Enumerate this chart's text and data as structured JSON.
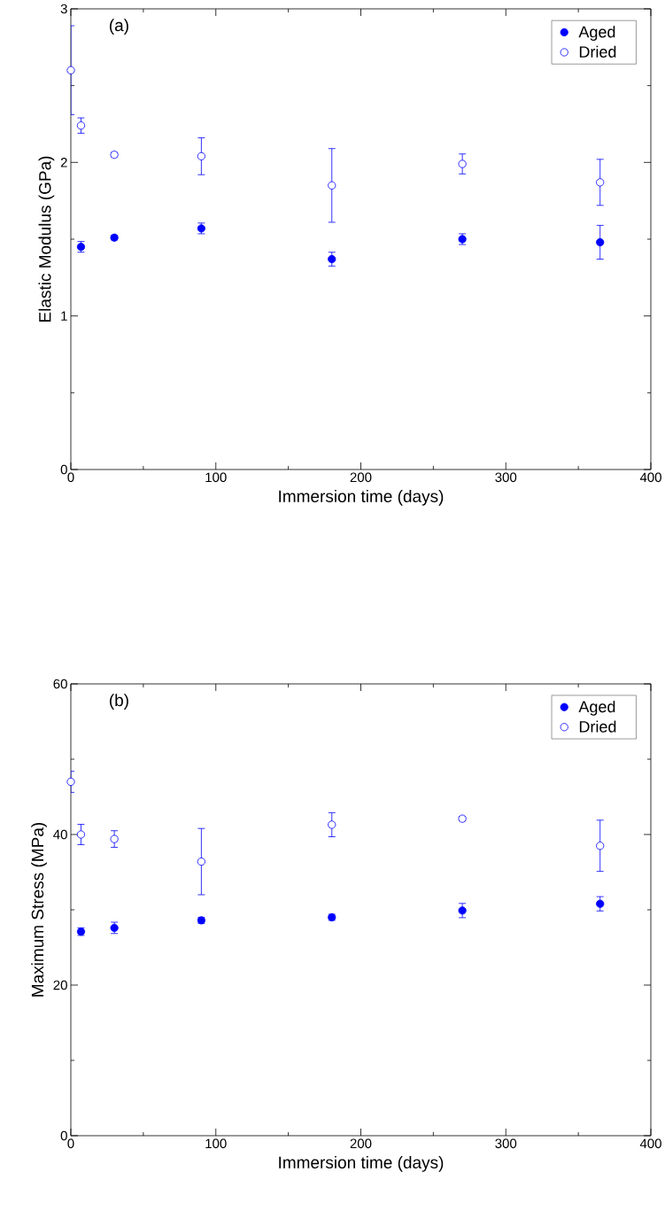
{
  "chart_data": [
    {
      "type": "scatter",
      "xlabel": "Immersion time (days)",
      "ylabel": "Elastic Modulus (GPa)",
      "annotations": [
        "(a)"
      ],
      "legend": "top right",
      "marker": "circle",
      "xlim": [
        0,
        400
      ],
      "xticks": [
        0,
        {
          "value": 50,
          "label": null
        },
        100,
        {
          "value": 150,
          "label": null
        },
        200,
        {
          "value": 250,
          "label": null
        },
        300,
        {
          "value": 350,
          "label": null
        },
        400
      ],
      "ylim": [
        0,
        3
      ],
      "yticks": [
        0,
        {
          "value": 0.5,
          "label": null
        },
        1,
        {
          "value": 1.5,
          "label": null
        },
        2,
        {
          "value": 2.5,
          "label": null
        },
        3
      ],
      "series": [
        {
          "name": "Aged",
          "color": "#0000ff",
          "x": [
            7,
            30,
            90,
            180,
            270,
            365
          ],
          "values": [
            1.45,
            1.51,
            1.57,
            1.37,
            1.5,
            1.48
          ],
          "errors": [
            0.035,
            0.015,
            0.035,
            0.045,
            0.035,
            0.11
          ]
        },
        {
          "name": "Dried",
          "color": "#0000ff",
          "x": [
            0,
            7,
            30,
            90,
            180,
            270,
            365
          ],
          "values": [
            2.6,
            2.24,
            2.05,
            2.04,
            1.85,
            1.99,
            1.87
          ],
          "errors": [
            0.29,
            0.05,
            0.015,
            0.12,
            0.24,
            0.065,
            0.15
          ]
        }
      ]
    },
    {
      "type": "scatter",
      "xlabel": "Immersion time (days)",
      "ylabel": "Maximum Stress (MPa)",
      "annotations": [
        "(b)"
      ],
      "legend": "top right",
      "marker": "circle",
      "xlim": [
        0,
        400
      ],
      "xticks": [
        0,
        {
          "value": 50,
          "label": null
        },
        100,
        {
          "value": 150,
          "label": null
        },
        200,
        {
          "value": 250,
          "label": null
        },
        300,
        {
          "value": 350,
          "label": null
        },
        400
      ],
      "ylim": [
        0,
        60
      ],
      "yticks": [
        0,
        {
          "value": 10,
          "label": null
        },
        20,
        {
          "value": 30,
          "label": null
        },
        40,
        {
          "value": 50,
          "label": null
        },
        60
      ],
      "series": [
        {
          "name": "Aged",
          "color": "#0000ff",
          "x": [
            7,
            30,
            90,
            180,
            270,
            365
          ],
          "values": [
            27.1,
            27.6,
            28.6,
            29.0,
            29.9,
            30.8
          ],
          "errors": [
            0.5,
            0.75,
            0.4,
            0.4,
            0.95,
            0.95
          ]
        },
        {
          "name": "Dried",
          "color": "#0000ff",
          "x": [
            0,
            7,
            30,
            90,
            180,
            270,
            365
          ],
          "values": [
            47.0,
            40.0,
            39.4,
            36.4,
            41.3,
            42.1,
            38.5
          ],
          "errors": [
            1.4,
            1.35,
            1.1,
            4.4,
            1.6,
            0.3,
            3.4
          ]
        }
      ]
    }
  ]
}
